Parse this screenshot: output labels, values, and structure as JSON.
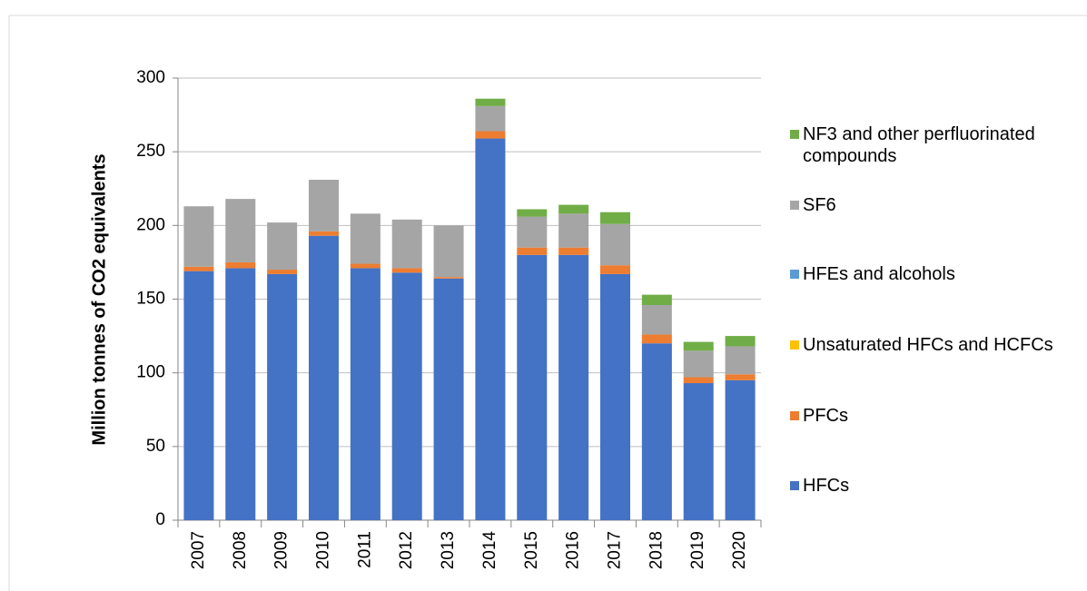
{
  "chart_data": {
    "type": "bar",
    "stacked": true,
    "ylabel": "Million tonnes of CO2 equivalents",
    "categories": [
      "2007",
      "2008",
      "2009",
      "2010",
      "2011",
      "2012",
      "2013",
      "2014",
      "2015",
      "2016",
      "2017",
      "2018",
      "2019",
      "2020"
    ],
    "series": [
      {
        "name": "HFCs",
        "color": "#4472c4",
        "values": [
          169,
          171,
          167,
          193,
          171,
          168,
          164,
          259,
          180,
          180,
          167,
          120,
          93,
          95
        ]
      },
      {
        "name": "PFCs",
        "color": "#ed7d31",
        "values": [
          3,
          4,
          3,
          3,
          3,
          3,
          1,
          5,
          5,
          5,
          6,
          6,
          4,
          4
        ]
      },
      {
        "name": "Unsaturated HFCs and HCFCs",
        "color": "#ffc000",
        "values": [
          0,
          0,
          0,
          0,
          0,
          0,
          0,
          0,
          0,
          0,
          0,
          0,
          0,
          0
        ]
      },
      {
        "name": "HFEs and alcohols",
        "color": "#5b9bd5",
        "values": [
          0,
          0,
          0,
          0,
          0,
          0,
          0,
          0,
          0,
          0,
          0,
          0,
          0,
          0
        ]
      },
      {
        "name": "SF6",
        "color": "#a5a5a5",
        "values": [
          41,
          43,
          32,
          35,
          34,
          33,
          35,
          17,
          21,
          23,
          28,
          20,
          18,
          19
        ]
      },
      {
        "name": "NF3 and other perfluorinated compounds",
        "color": "#70ad47",
        "values": [
          0,
          0,
          0,
          0,
          0,
          0,
          0,
          5,
          5,
          6,
          8,
          7,
          6,
          7
        ]
      }
    ],
    "ylim": [
      0,
      300
    ],
    "yticks": [
      0,
      50,
      100,
      150,
      200,
      250,
      300
    ],
    "grid": true,
    "legend": "right"
  }
}
